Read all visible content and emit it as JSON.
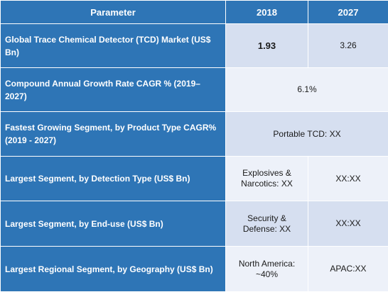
{
  "header": {
    "parameter": "Parameter",
    "col_2018": "2018",
    "col_2027": "2027"
  },
  "rows": [
    {
      "parameter": "Global Trace Chemical Detector (TCD) Market (US$ Bn)",
      "v2018": "1.93",
      "v2027": "3.26"
    },
    {
      "parameter": "Compound Annual Growth Rate CAGR % (2019–2027)",
      "value": "6.1%"
    },
    {
      "parameter_lines": [
        "Fastest Growing Segment, by Product Type CAGR%",
        "(2019 - 2027)"
      ],
      "value": "Portable TCD: XX"
    },
    {
      "parameter": "Largest Segment, by Detection Type (US$ Bn)",
      "v2018": "Explosives & Narcotics: XX",
      "v2027": "XX:XX"
    },
    {
      "parameter": "Largest Segment, by End-use (US$ Bn)",
      "v2018": "Security & Defense: XX",
      "v2027": "XX:XX"
    },
    {
      "parameter": "Largest Regional Segment, by Geography (US$ Bn)",
      "v2018": "North America: ~40%",
      "v2027": "APAC:XX"
    }
  ],
  "colors": {
    "header_blue": "#2e75b6",
    "row_dark": "#d6dff0",
    "row_light": "#edf1f9"
  }
}
